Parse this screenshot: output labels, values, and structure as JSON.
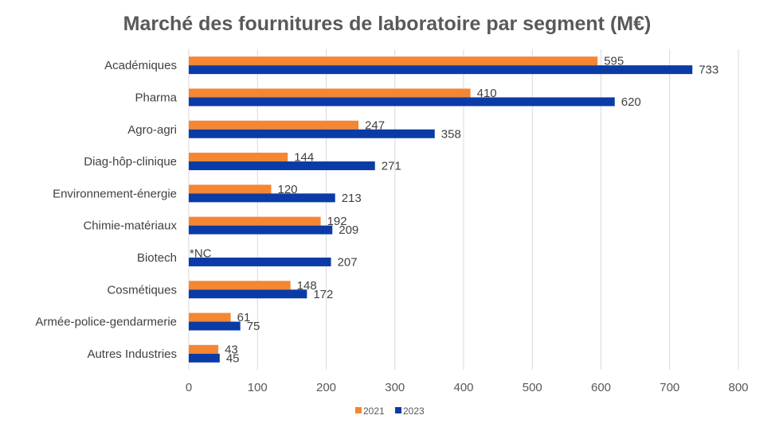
{
  "chart_data": {
    "type": "bar",
    "orientation": "horizontal",
    "title": "Marché des fournitures de laboratoire par segment (M€)",
    "categories": [
      "Académiques",
      "Pharma",
      "Agro-agri",
      "Diag-hôp-clinique",
      "Environnement-énergie",
      "Chimie-matériaux",
      "Biotech",
      "Cosmétiques",
      "Armée-police-gendarmerie",
      "Autres Industries"
    ],
    "series": [
      {
        "name": "2021",
        "color": "#F58632",
        "values": [
          595,
          410,
          247,
          144,
          120,
          192,
          null,
          148,
          61,
          43
        ],
        "labels": [
          "595",
          "410",
          "247",
          "144",
          "120",
          "192",
          "*NC",
          "148",
          "61",
          "43"
        ]
      },
      {
        "name": "2023",
        "color": "#0B3BA7",
        "values": [
          733,
          620,
          358,
          271,
          213,
          209,
          207,
          172,
          75,
          45
        ],
        "labels": [
          "733",
          "620",
          "358",
          "271",
          "213",
          "209",
          "207",
          "172",
          "75",
          "45"
        ]
      }
    ],
    "xlim": [
      0,
      800
    ],
    "xticks": [
      0,
      100,
      200,
      300,
      400,
      500,
      600,
      700,
      800
    ],
    "grid": true,
    "legend_position": "bottom"
  }
}
